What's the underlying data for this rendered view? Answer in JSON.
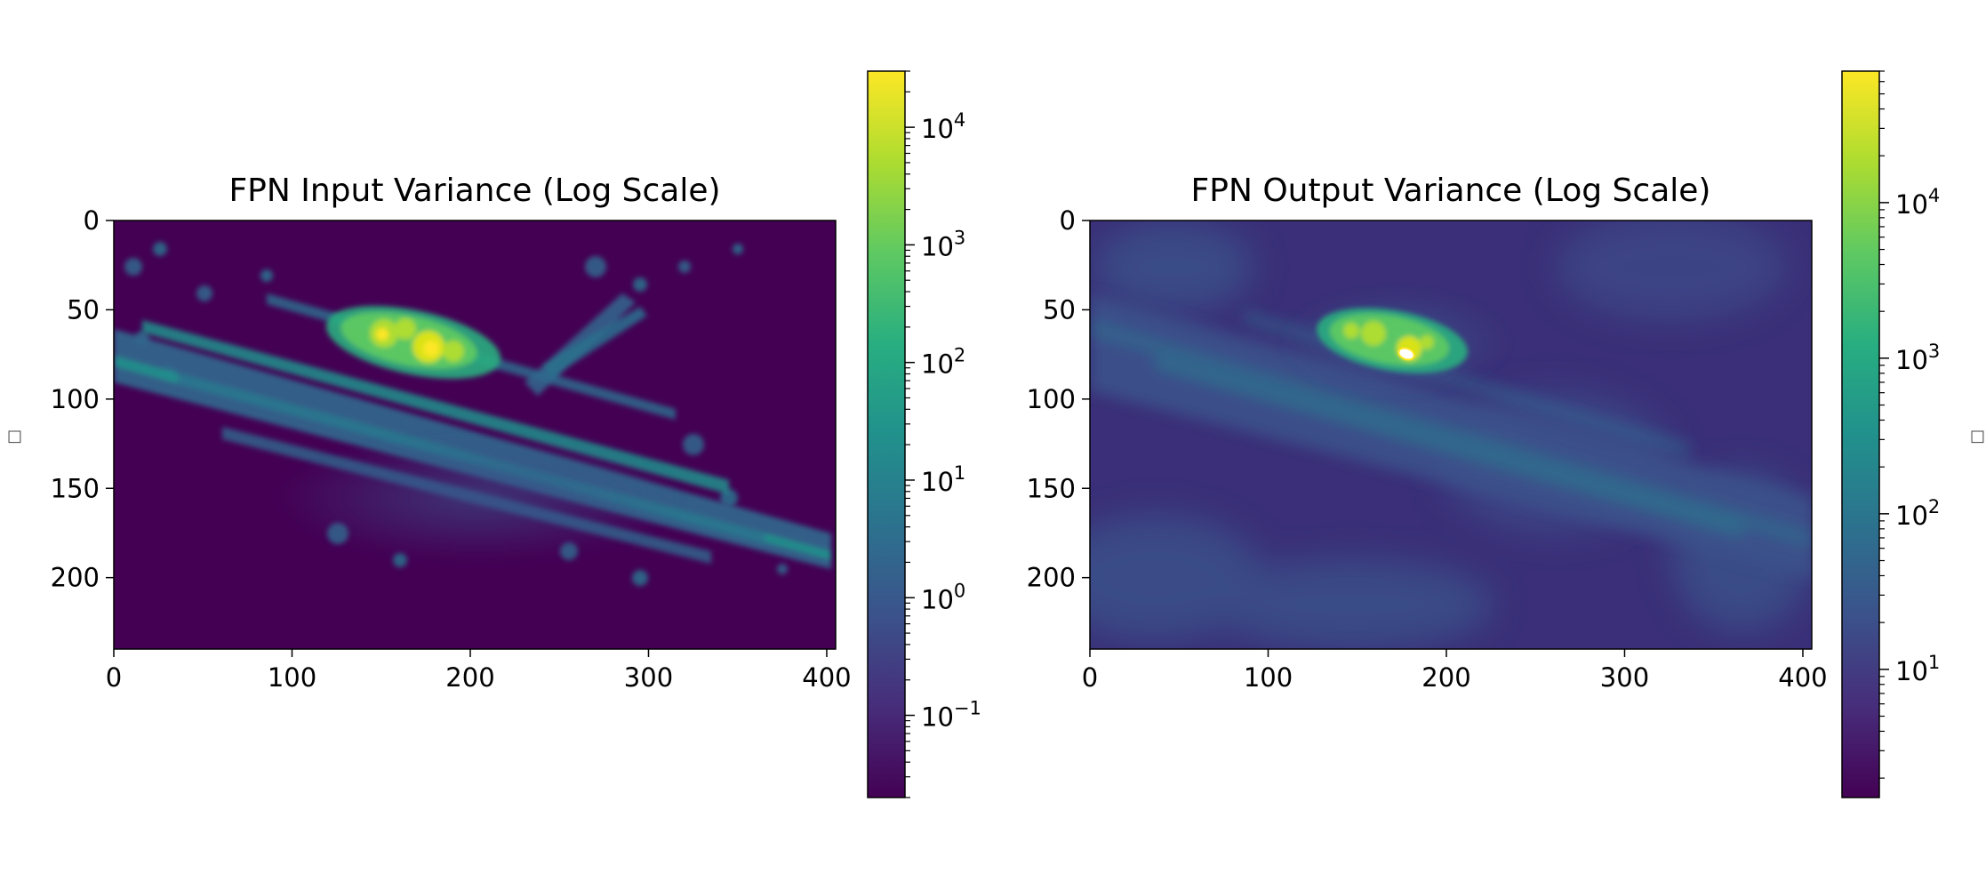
{
  "side_marks": [
    "□",
    "□"
  ],
  "chart_data": [
    {
      "type": "heatmap",
      "title": "FPN Input Variance (Log Scale)",
      "xlim": [
        0,
        405
      ],
      "ylim": [
        240,
        0
      ],
      "x_ticks": [
        "0",
        "100",
        "200",
        "300",
        "400"
      ],
      "y_ticks": [
        "0",
        "50",
        "100",
        "150",
        "200"
      ],
      "colormap": "viridis",
      "colorbar": {
        "scale": "log",
        "range": [
          0.02,
          30000
        ],
        "tick_bases": [
          "10",
          "10",
          "10",
          "10",
          "10",
          "10"
        ],
        "tick_exponents": [
          "4",
          "3",
          "2",
          "1",
          "0",
          "−1"
        ]
      },
      "features": {
        "hotspot_center": [
          178,
          72
        ],
        "background_level": 0.02,
        "peak_level": 30000
      }
    },
    {
      "type": "heatmap",
      "title": "FPN Output Variance (Log Scale)",
      "xlim": [
        0,
        405
      ],
      "ylim": [
        240,
        0
      ],
      "x_ticks": [
        "0",
        "100",
        "200",
        "300",
        "400"
      ],
      "y_ticks": [
        "0",
        "50",
        "100",
        "150",
        "200"
      ],
      "colormap": "viridis",
      "colorbar": {
        "scale": "log",
        "range": [
          1.5,
          70000
        ],
        "tick_bases": [
          "10",
          "10",
          "10",
          "10"
        ],
        "tick_exponents": [
          "4",
          "3",
          "2",
          "1"
        ]
      },
      "features": {
        "hotspot_center": [
          178,
          75
        ],
        "background_level": 10,
        "peak_level": 70000
      }
    }
  ],
  "colors": {
    "viridis_low": "#440154",
    "viridis_mid": "#21918c",
    "viridis_high": "#fde725"
  }
}
